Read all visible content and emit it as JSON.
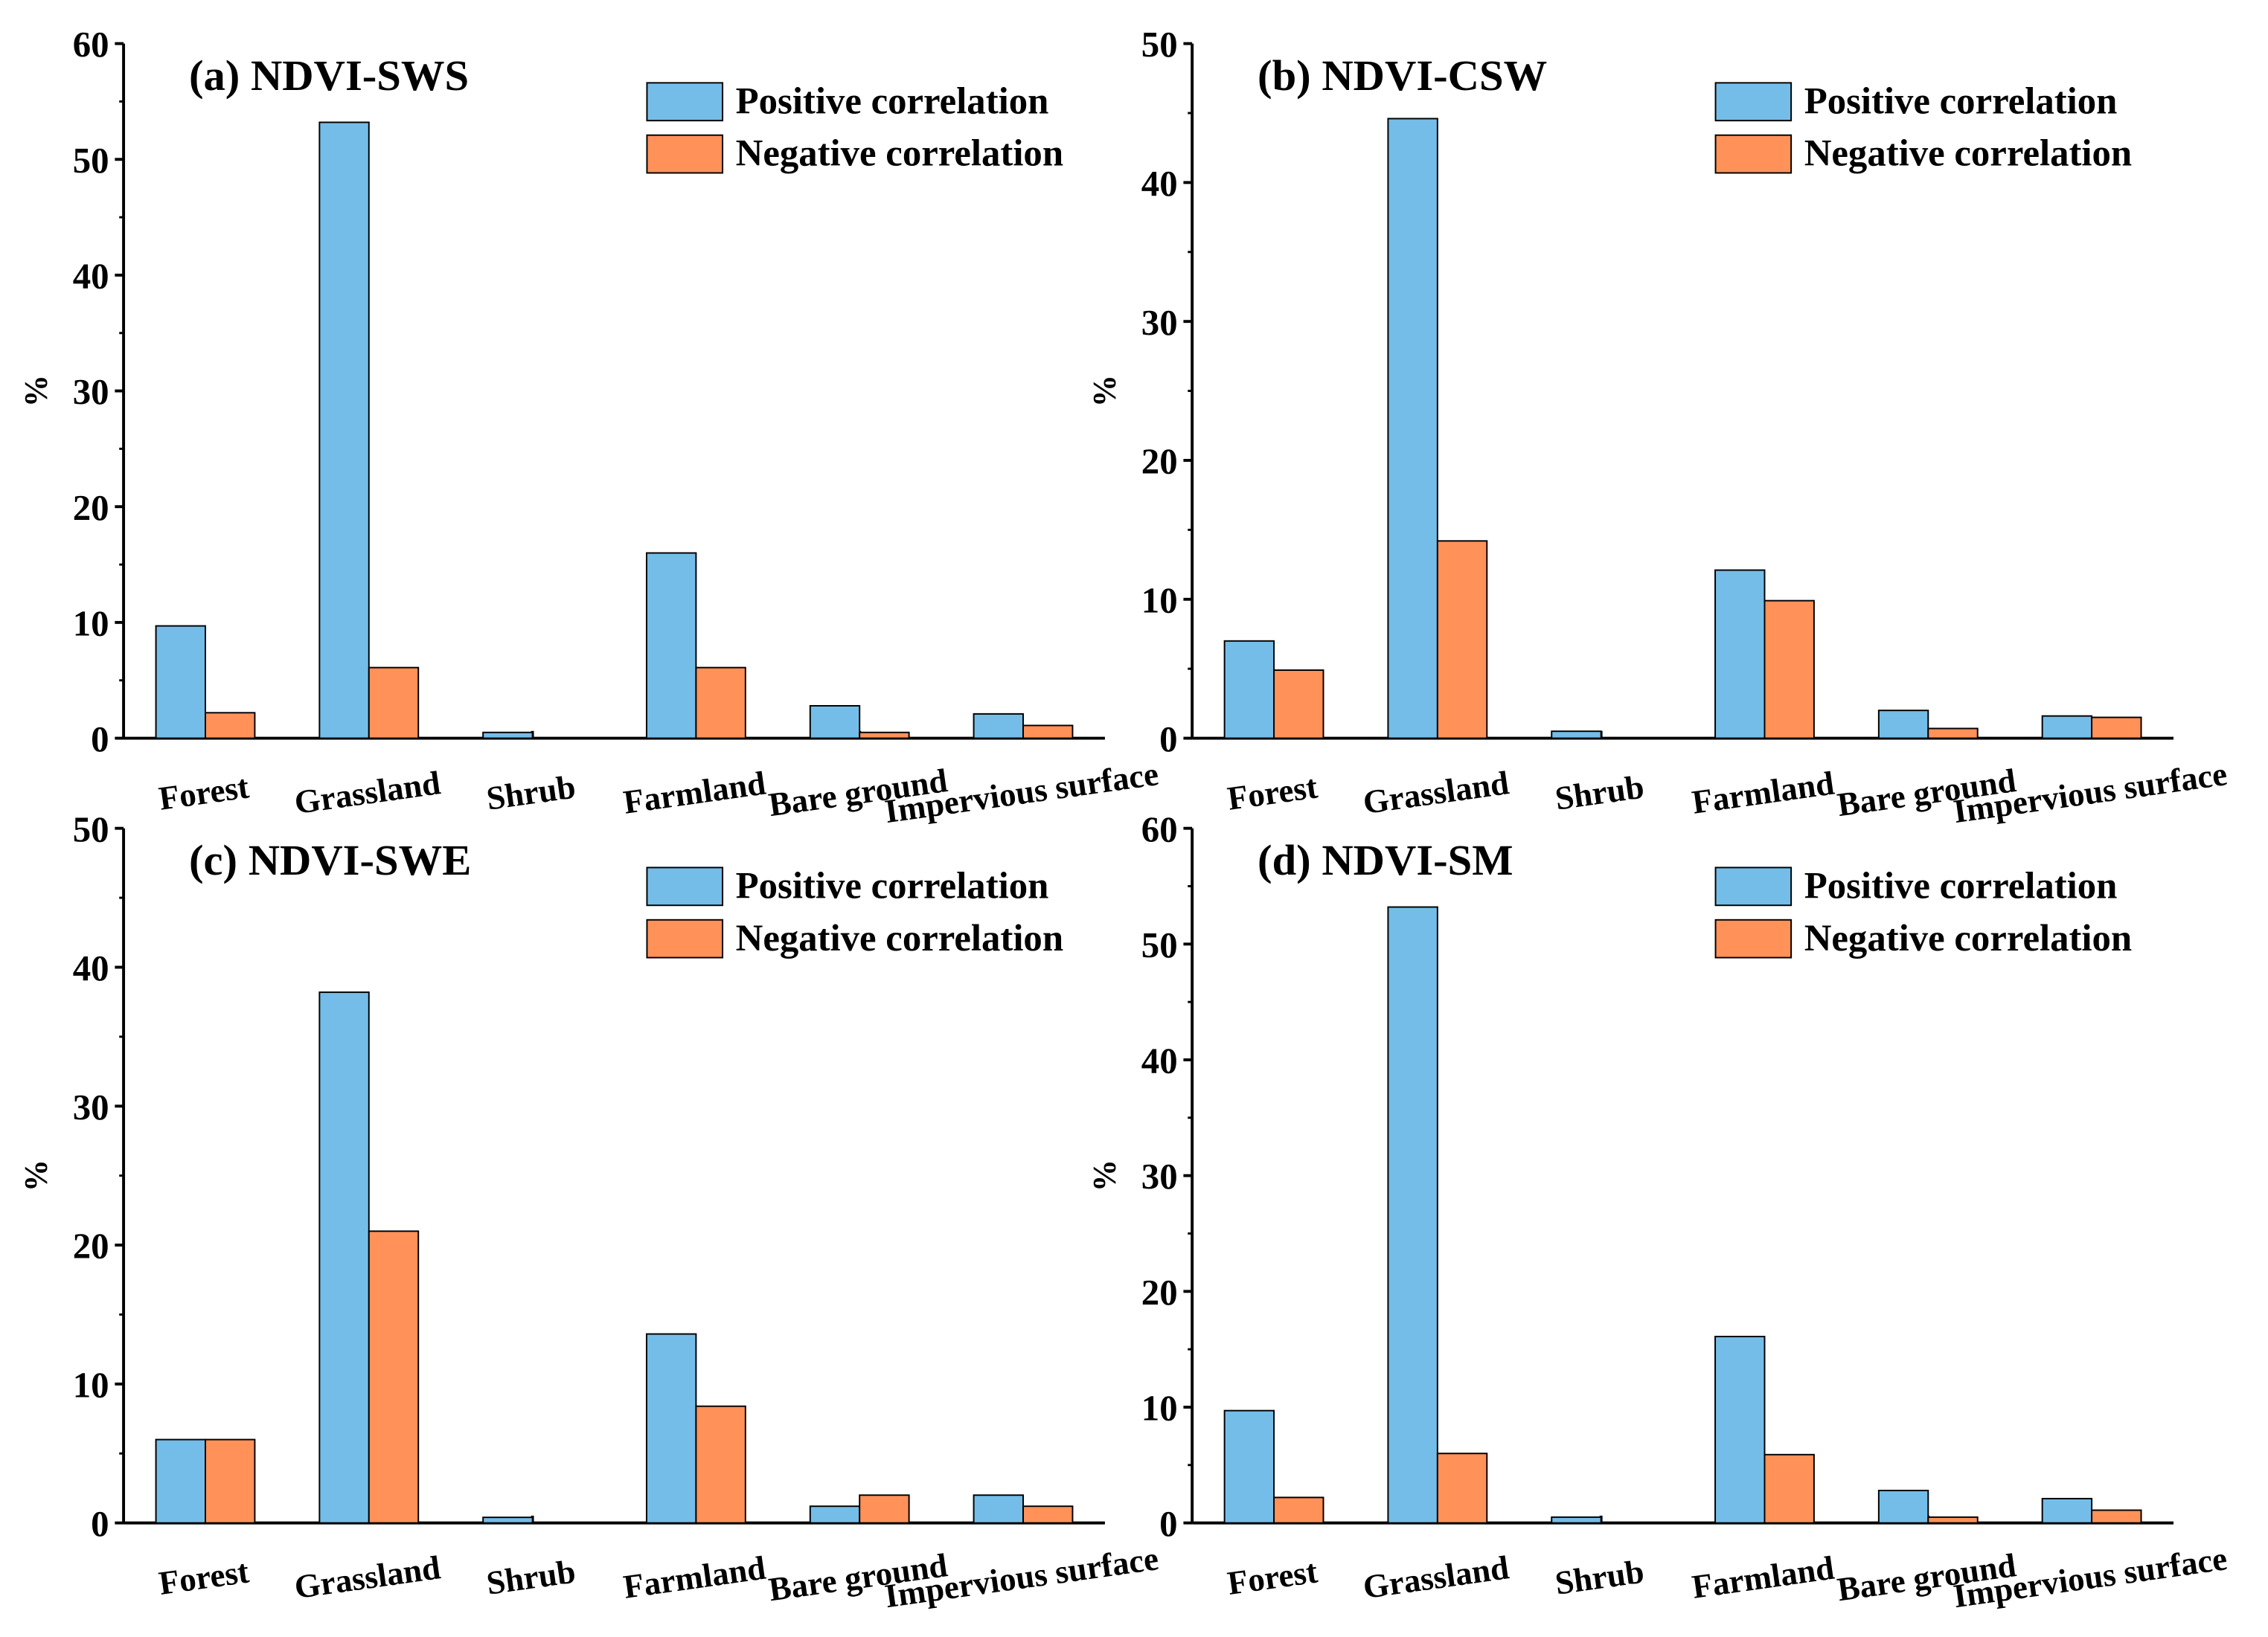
{
  "chart_data": [
    {
      "type": "bar",
      "title": "(a) NDVI-SWS",
      "ylabel": "%",
      "categories": [
        "Forest",
        "Grassland",
        "Shrub",
        "Farmland",
        "Bare ground",
        "Impervious surface"
      ],
      "series": [
        {
          "name": "Positive correlation",
          "color": "#74bde8",
          "values": [
            9.7,
            53.2,
            0.5,
            16.0,
            2.8,
            2.1
          ]
        },
        {
          "name": "Negative correlation",
          "color": "#ff9159",
          "values": [
            2.2,
            6.1,
            0,
            6.1,
            0.5,
            1.1
          ]
        }
      ],
      "ylim": [
        0,
        60
      ],
      "yticks": [
        0,
        10,
        20,
        30,
        40,
        50,
        60
      ]
    },
    {
      "type": "bar",
      "title": "(b) NDVI-CSW",
      "ylabel": "%",
      "categories": [
        "Forest",
        "Grassland",
        "Shrub",
        "Farmland",
        "Bare ground",
        "Impervious surface"
      ],
      "series": [
        {
          "name": "Positive correlation",
          "color": "#74bde8",
          "values": [
            7.0,
            44.6,
            0.5,
            12.1,
            2.0,
            1.6
          ]
        },
        {
          "name": "Negative correlation",
          "color": "#ff9159",
          "values": [
            4.9,
            14.2,
            0,
            9.9,
            0.7,
            1.5
          ]
        }
      ],
      "ylim": [
        0,
        50
      ],
      "yticks": [
        0,
        10,
        20,
        30,
        40,
        50
      ]
    },
    {
      "type": "bar",
      "title": "(c) NDVI-SWE",
      "ylabel": "%",
      "categories": [
        "Forest",
        "Grassland",
        "Shrub",
        "Farmland",
        "Bare ground",
        "Impervious surface"
      ],
      "series": [
        {
          "name": "Positive correlation",
          "color": "#74bde8",
          "values": [
            6.0,
            38.2,
            0.4,
            13.6,
            1.2,
            2.0
          ]
        },
        {
          "name": "Negative correlation",
          "color": "#ff9159",
          "values": [
            6.0,
            21.0,
            0,
            8.4,
            2.0,
            1.2
          ]
        }
      ],
      "ylim": [
        0,
        50
      ],
      "yticks": [
        0,
        10,
        20,
        30,
        40,
        50
      ]
    },
    {
      "type": "bar",
      "title": "(d) NDVI-SM",
      "ylabel": "%",
      "categories": [
        "Forest",
        "Grassland",
        "Shrub",
        "Farmland",
        "Bare ground",
        "Impervious surface"
      ],
      "series": [
        {
          "name": "Positive correlation",
          "color": "#74bde8",
          "values": [
            9.7,
            53.2,
            0.5,
            16.1,
            2.8,
            2.1
          ]
        },
        {
          "name": "Negative correlation",
          "color": "#ff9159",
          "values": [
            2.2,
            6.0,
            0,
            5.9,
            0.5,
            1.1
          ]
        }
      ],
      "ylim": [
        0,
        60
      ],
      "yticks": [
        0,
        10,
        20,
        30,
        40,
        50,
        60
      ]
    }
  ]
}
